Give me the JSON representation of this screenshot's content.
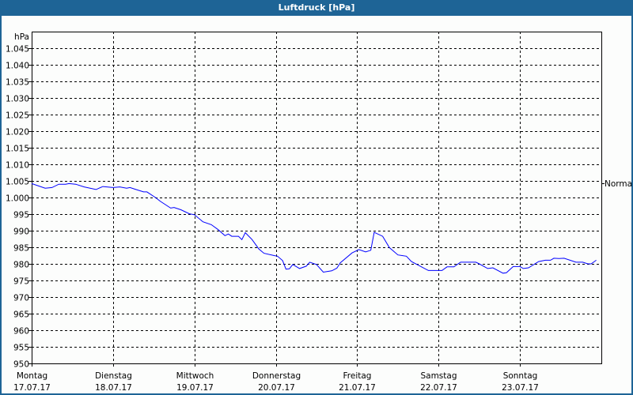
{
  "window": {
    "title": "Luftdruck [hPa]"
  },
  "chart_data": {
    "type": "line",
    "title": "Luftdruck [hPa]",
    "ylabel": "hPa",
    "ylim": [
      950,
      1050
    ],
    "yticks": [
      950,
      955,
      960,
      965,
      970,
      975,
      980,
      985,
      990,
      995,
      1000,
      1005,
      1010,
      1015,
      1020,
      1025,
      1030,
      1035,
      1040,
      1045
    ],
    "ytick_labels": [
      "950",
      "955",
      "960",
      "965",
      "970",
      "975",
      "980",
      "985",
      "990",
      "995",
      "1.000",
      "1.005",
      "1.010",
      "1.015",
      "1.020",
      "1.025",
      "1.030",
      "1.035",
      "1.040",
      "1.045"
    ],
    "xlim": [
      "2017-07-17T00:00",
      "2017-07-24T00:00"
    ],
    "xticks": [
      {
        "day": "Montag",
        "date": "17.07.17"
      },
      {
        "day": "Dienstag",
        "date": "18.07.17"
      },
      {
        "day": "Mittwoch",
        "date": "19.07.17"
      },
      {
        "day": "Donnerstag",
        "date": "20.07.17"
      },
      {
        "day": "Freitag",
        "date": "21.07.17"
      },
      {
        "day": "Samstag",
        "date": "22.07.17"
      },
      {
        "day": "Sonntag",
        "date": "23.07.17"
      }
    ],
    "grid": true,
    "reference": {
      "label": "Normal",
      "value": 1004.3
    },
    "line_color": "#0000ff",
    "series": [
      {
        "points": [
          [
            "2017-07-17T00:00",
            1004.2
          ],
          [
            "2017-07-17T04:00",
            1002.8
          ],
          [
            "2017-07-17T06:00",
            1003.0
          ],
          [
            "2017-07-17T08:00",
            1004.0
          ],
          [
            "2017-07-17T10:00",
            1004.0
          ],
          [
            "2017-07-17T11:00",
            1004.2
          ],
          [
            "2017-07-17T13:00",
            1004.0
          ],
          [
            "2017-07-17T15:30",
            1003.2
          ],
          [
            "2017-07-17T19:00",
            1002.4
          ],
          [
            "2017-07-17T21:00",
            1003.3
          ],
          [
            "2017-07-18T00:00",
            1003.0
          ],
          [
            "2017-07-18T02:00",
            1003.2
          ],
          [
            "2017-07-18T04:00",
            1002.8
          ],
          [
            "2017-07-18T05:00",
            1003.0
          ],
          [
            "2017-07-18T06:30",
            1002.5
          ],
          [
            "2017-07-18T09:00",
            1001.7
          ],
          [
            "2017-07-18T10:00",
            1001.7
          ],
          [
            "2017-07-18T12:30",
            1000.0
          ],
          [
            "2017-07-18T14:00",
            998.8
          ],
          [
            "2017-07-18T17:00",
            996.8
          ],
          [
            "2017-07-18T18:00",
            997.0
          ],
          [
            "2017-07-18T20:00",
            996.3
          ],
          [
            "2017-07-18T22:30",
            995.1
          ],
          [
            "2017-07-19T00:00",
            994.8
          ],
          [
            "2017-07-19T02:30",
            992.7
          ],
          [
            "2017-07-19T05:00",
            991.8
          ],
          [
            "2017-07-19T07:00",
            990.3
          ],
          [
            "2017-07-19T09:00",
            988.5
          ],
          [
            "2017-07-19T10:00",
            989.0
          ],
          [
            "2017-07-19T11:00",
            988.3
          ],
          [
            "2017-07-19T13:00",
            988.3
          ],
          [
            "2017-07-19T14:00",
            987.3
          ],
          [
            "2017-07-19T15:00",
            989.4
          ],
          [
            "2017-07-19T17:00",
            987.3
          ],
          [
            "2017-07-19T19:00",
            984.5
          ],
          [
            "2017-07-19T20:30",
            983.2
          ],
          [
            "2017-07-19T23:30",
            982.5
          ],
          [
            "2017-07-20T00:30",
            982.3
          ],
          [
            "2017-07-20T02:00",
            981.0
          ],
          [
            "2017-07-20T03:00",
            978.4
          ],
          [
            "2017-07-20T04:00",
            978.5
          ],
          [
            "2017-07-20T05:00",
            979.8
          ],
          [
            "2017-07-20T07:00",
            978.6
          ],
          [
            "2017-07-20T09:00",
            979.3
          ],
          [
            "2017-07-20T10:00",
            980.5
          ],
          [
            "2017-07-20T12:00",
            979.8
          ],
          [
            "2017-07-20T14:00",
            977.5
          ],
          [
            "2017-07-20T16:30",
            977.9
          ],
          [
            "2017-07-20T18:00",
            978.7
          ],
          [
            "2017-07-20T19:00",
            980.3
          ],
          [
            "2017-07-20T22:30",
            983.3
          ],
          [
            "2017-07-21T00:30",
            984.3
          ],
          [
            "2017-07-21T02:30",
            983.6
          ],
          [
            "2017-07-21T04:00",
            984.1
          ],
          [
            "2017-07-21T05:00",
            989.5
          ],
          [
            "2017-07-21T07:30",
            988.3
          ],
          [
            "2017-07-21T09:30",
            984.9
          ],
          [
            "2017-07-21T12:00",
            982.7
          ],
          [
            "2017-07-21T14:30",
            982.3
          ],
          [
            "2017-07-21T16:00",
            980.7
          ],
          [
            "2017-07-21T21:00",
            978.0
          ],
          [
            "2017-07-22T01:00",
            978.0
          ],
          [
            "2017-07-22T02:30",
            979.1
          ],
          [
            "2017-07-22T04:30",
            979.1
          ],
          [
            "2017-07-22T06:30",
            980.5
          ],
          [
            "2017-07-22T11:00",
            980.5
          ],
          [
            "2017-07-22T12:00",
            980.0
          ],
          [
            "2017-07-22T14:30",
            978.6
          ],
          [
            "2017-07-22T16:00",
            978.8
          ],
          [
            "2017-07-22T19:00",
            977.2
          ],
          [
            "2017-07-22T20:00",
            977.3
          ],
          [
            "2017-07-22T22:00",
            979.2
          ],
          [
            "2017-07-23T00:00",
            979.2
          ],
          [
            "2017-07-23T01:00",
            978.6
          ],
          [
            "2017-07-23T02:30",
            978.8
          ],
          [
            "2017-07-23T05:30",
            980.7
          ],
          [
            "2017-07-23T07:30",
            981.1
          ],
          [
            "2017-07-23T09:00",
            981.1
          ],
          [
            "2017-07-23T10:00",
            981.7
          ],
          [
            "2017-07-23T11:30",
            981.6
          ],
          [
            "2017-07-23T13:00",
            981.7
          ],
          [
            "2017-07-23T16:30",
            980.5
          ],
          [
            "2017-07-23T18:30",
            980.5
          ],
          [
            "2017-07-23T20:00",
            980.0
          ],
          [
            "2017-07-23T21:00",
            980.0
          ],
          [
            "2017-07-23T22:30",
            981.1
          ]
        ]
      }
    ]
  }
}
